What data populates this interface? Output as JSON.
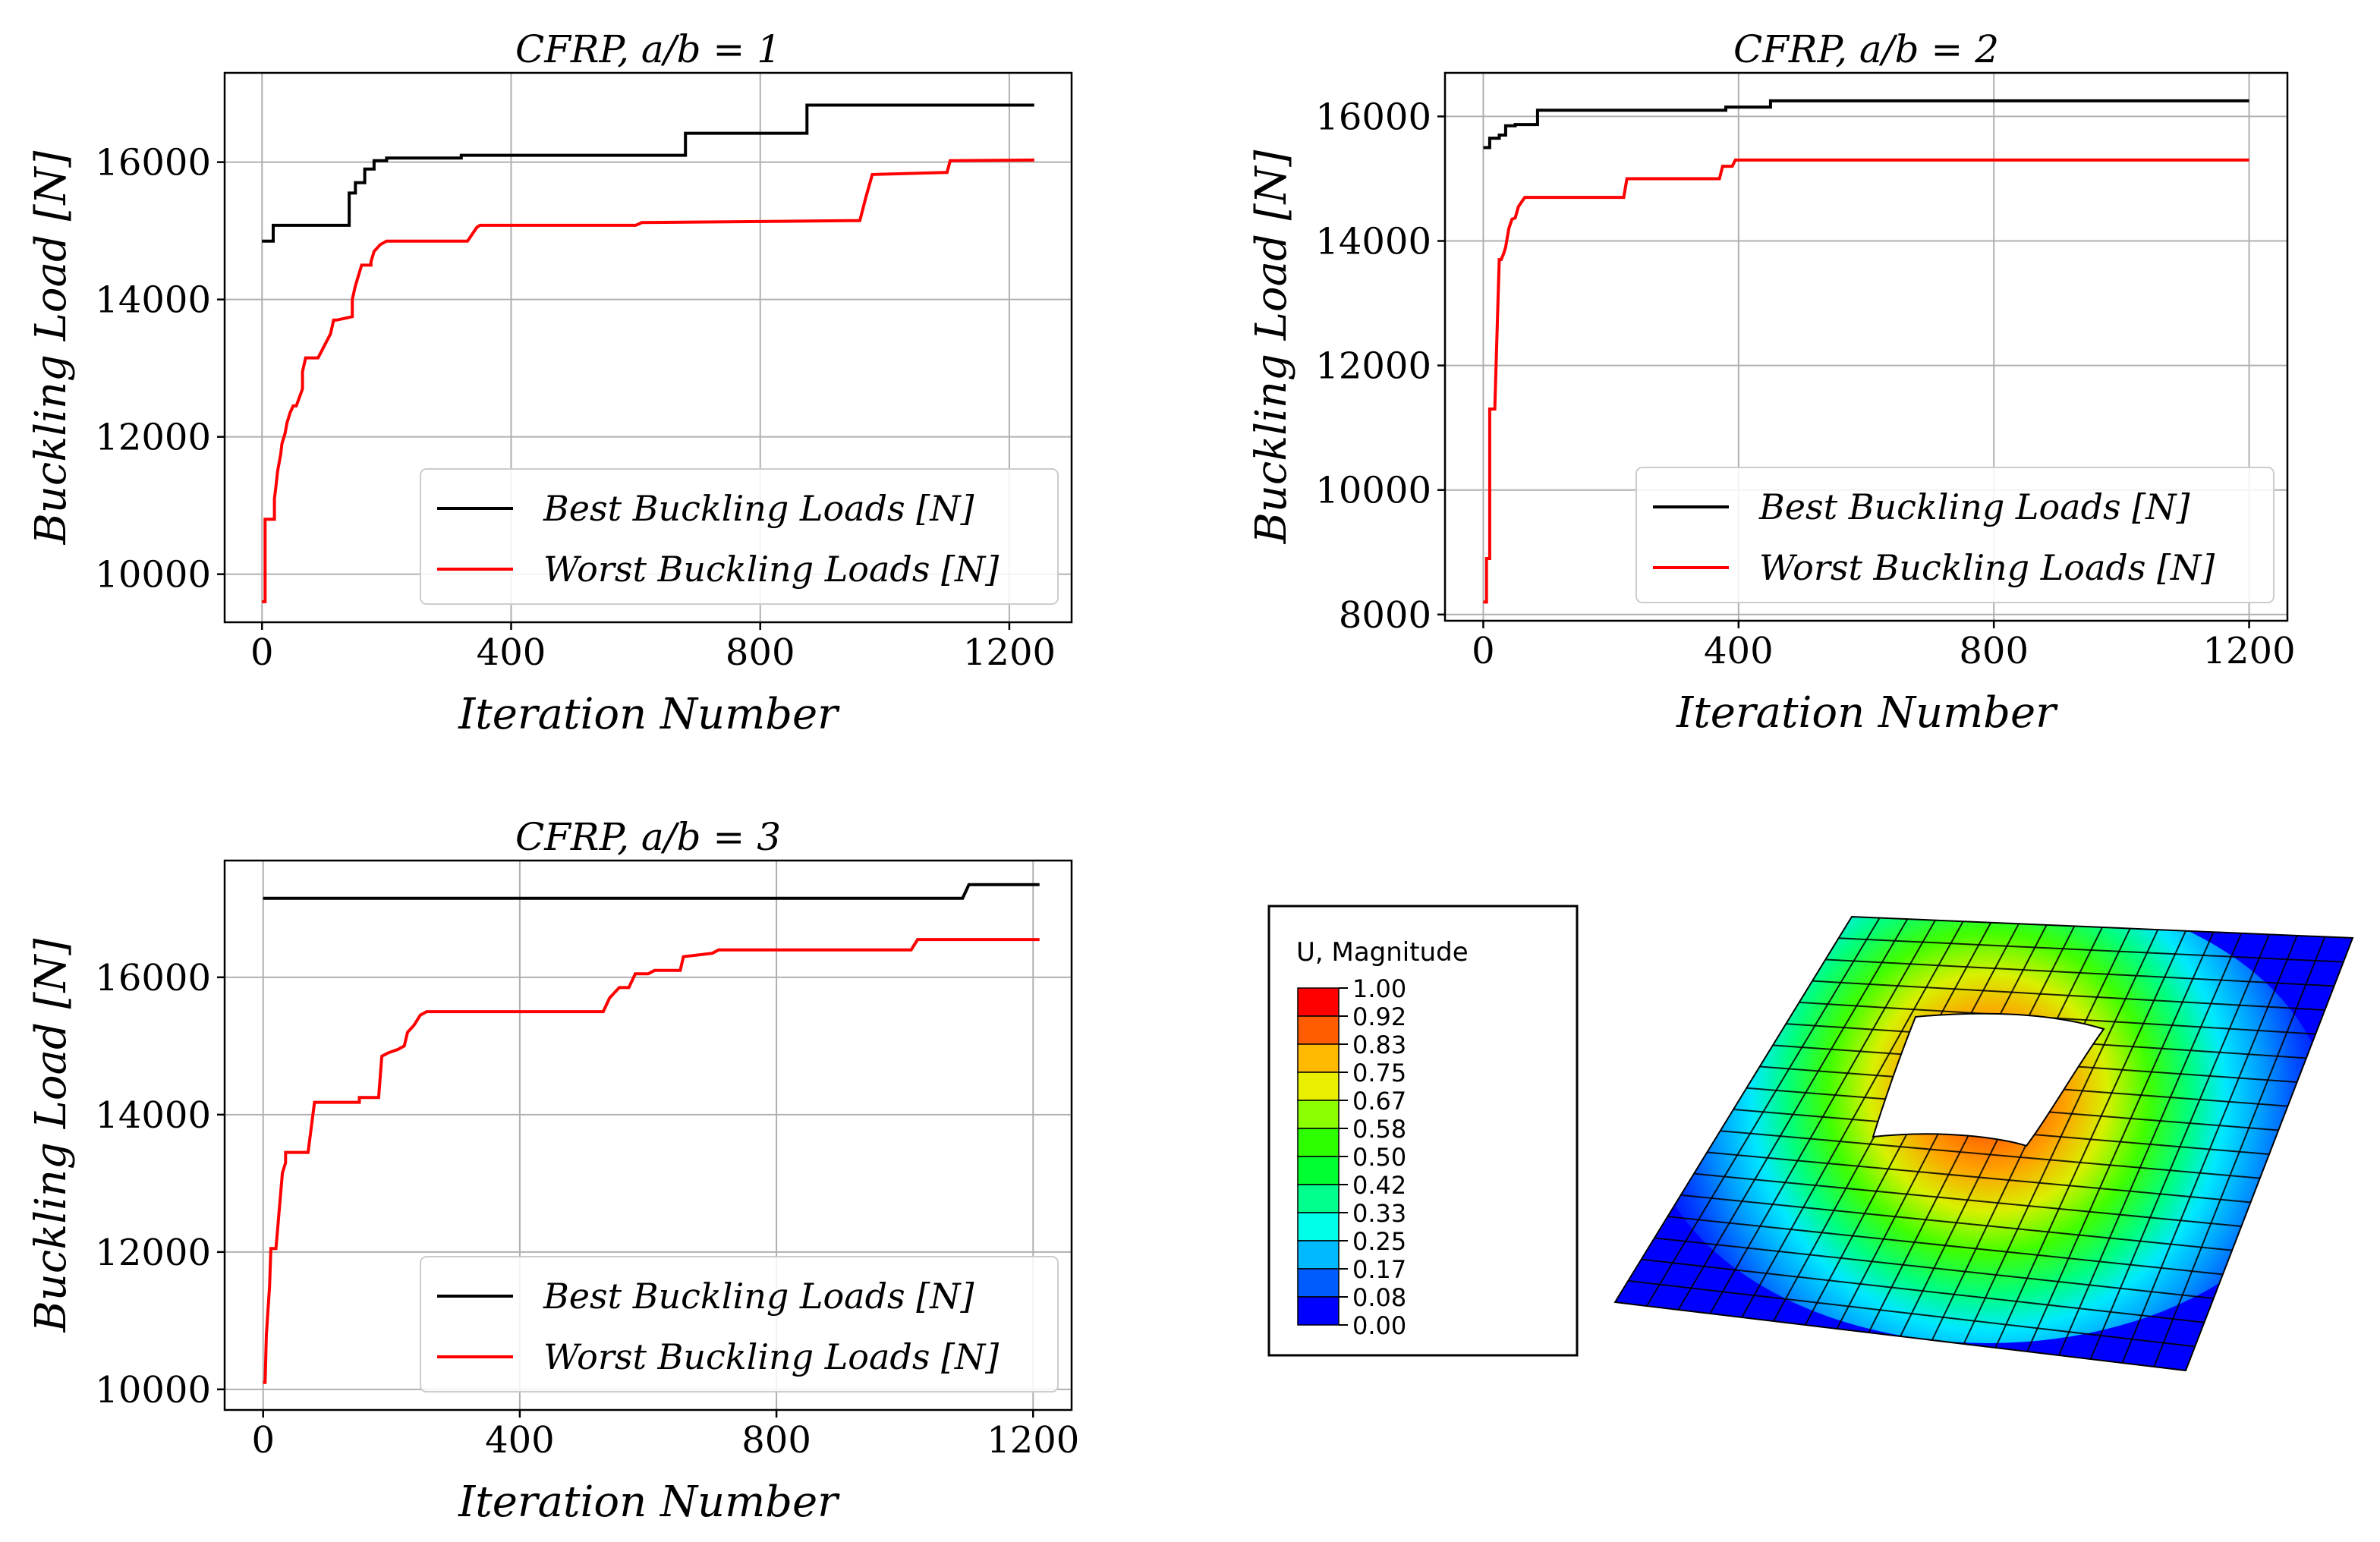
{
  "figure": {
    "background": "#ffffff"
  },
  "colors": {
    "best": "#000000",
    "worst": "#ff0000",
    "grid": "#b0b0b0",
    "axis": "#000000"
  },
  "chart_data": [
    {
      "type": "line",
      "title": "CFRP, a/b = 1",
      "xlabel": "Iteration Number",
      "ylabel": "Buckling Load [N]",
      "xlim": [
        -60,
        1300
      ],
      "ylim": [
        9300,
        17300
      ],
      "xticks": [
        0,
        400,
        800,
        1200
      ],
      "yticks": [
        10000,
        12000,
        14000,
        16000
      ],
      "legend": [
        "Best Buckling Loads [N]",
        "Worst Buckling Loads [N]"
      ],
      "legend_position": "lower-right",
      "grid": true,
      "series": [
        {
          "name": "Best Buckling Loads [N]",
          "color": "#000000",
          "x": [
            0,
            18,
            18,
            140,
            140,
            150,
            150,
            165,
            165,
            180,
            180,
            200,
            200,
            320,
            320,
            680,
            680,
            875,
            875,
            1240
          ],
          "y": [
            14850,
            14850,
            15080,
            15080,
            15550,
            15550,
            15700,
            15700,
            15900,
            15900,
            16020,
            16020,
            16060,
            16060,
            16100,
            16100,
            16420,
            16420,
            16830,
            16830
          ]
        },
        {
          "name": "Worst Buckling Loads [N]",
          "color": "#ff0000",
          "x": [
            0,
            5,
            5,
            20,
            20,
            22,
            25,
            30,
            32,
            37,
            40,
            45,
            50,
            55,
            65,
            65,
            70,
            90,
            110,
            115,
            120,
            145,
            145,
            150,
            160,
            175,
            175,
            180,
            190,
            200,
            210,
            330,
            345,
            350,
            600,
            610,
            960,
            970,
            980,
            1100,
            1105,
            1240
          ],
          "y": [
            9600,
            9600,
            10800,
            10800,
            11100,
            11250,
            11500,
            11750,
            11900,
            12050,
            12200,
            12350,
            12450,
            12450,
            12700,
            12950,
            13150,
            13150,
            13500,
            13700,
            13700,
            13750,
            14000,
            14200,
            14500,
            14500,
            14550,
            14700,
            14800,
            14850,
            14850,
            14850,
            15050,
            15080,
            15080,
            15120,
            15150,
            15500,
            15820,
            15850,
            16020,
            16030
          ]
        }
      ]
    },
    {
      "type": "line",
      "title": "CFRP, a/b = 2",
      "xlabel": "Iteration Number",
      "ylabel": "Buckling Load [N]",
      "xlim": [
        -60,
        1260
      ],
      "ylim": [
        7900,
        16700
      ],
      "xticks": [
        0,
        400,
        800,
        1200
      ],
      "yticks": [
        8000,
        10000,
        12000,
        14000,
        16000
      ],
      "legend": [
        "Best Buckling Loads [N]",
        "Worst Buckling Loads [N]"
      ],
      "legend_position": "lower-right",
      "grid": true,
      "series": [
        {
          "name": "Best Buckling Loads [N]",
          "color": "#000000",
          "x": [
            0,
            10,
            10,
            25,
            25,
            35,
            35,
            50,
            50,
            85,
            85,
            380,
            380,
            450,
            450,
            1200
          ],
          "y": [
            15500,
            15500,
            15650,
            15650,
            15700,
            15700,
            15850,
            15850,
            15870,
            15870,
            16100,
            16100,
            16150,
            16150,
            16250,
            16250
          ]
        },
        {
          "name": "Worst Buckling Loads [N]",
          "color": "#ff0000",
          "x": [
            0,
            5,
            5,
            10,
            10,
            18,
            20,
            22,
            25,
            28,
            32,
            35,
            40,
            45,
            45,
            50,
            55,
            65,
            70,
            220,
            225,
            370,
            375,
            390,
            395,
            1200
          ],
          "y": [
            8200,
            8200,
            8900,
            8900,
            11300,
            11300,
            12000,
            12700,
            13700,
            13700,
            13800,
            13900,
            14200,
            14350,
            14350,
            14370,
            14550,
            14700,
            14700,
            14700,
            15000,
            15000,
            15200,
            15200,
            15300,
            15300
          ]
        }
      ]
    },
    {
      "type": "line",
      "title": "CFRP, a/b = 3",
      "xlabel": "Iteration Number",
      "ylabel": "Buckling Load [N]",
      "xlim": [
        -60,
        1260
      ],
      "ylim": [
        9700,
        17700
      ],
      "xticks": [
        0,
        400,
        800,
        1200
      ],
      "yticks": [
        10000,
        12000,
        14000,
        16000
      ],
      "legend": [
        "Best Buckling Loads [N]",
        "Worst Buckling Loads [N]"
      ],
      "legend_position": "lower-right",
      "grid": true,
      "series": [
        {
          "name": "Best Buckling Loads [N]",
          "color": "#000000",
          "x": [
            0,
            1090,
            1100,
            1210
          ],
          "y": [
            17150,
            17150,
            17350,
            17350
          ]
        },
        {
          "name": "Worst Buckling Loads [N]",
          "color": "#ff0000",
          "x": [
            0,
            3,
            5,
            10,
            12,
            18,
            20,
            30,
            35,
            35,
            40,
            50,
            70,
            80,
            80,
            150,
            150,
            180,
            185,
            195,
            210,
            220,
            225,
            235,
            245,
            255,
            260,
            530,
            540,
            555,
            570,
            580,
            600,
            610,
            650,
            655,
            700,
            710,
            1010,
            1020,
            1210
          ],
          "y": [
            10100,
            10100,
            10800,
            11500,
            12050,
            12050,
            12050,
            13150,
            13300,
            13450,
            13450,
            13450,
            13450,
            14180,
            14180,
            14180,
            14250,
            14250,
            14850,
            14900,
            14950,
            15000,
            15200,
            15300,
            15450,
            15500,
            15500,
            15500,
            15700,
            15850,
            15850,
            16050,
            16050,
            16100,
            16100,
            16300,
            16350,
            16400,
            16400,
            16550,
            16550
          ]
        }
      ]
    }
  ],
  "contour": {
    "legend_title": "U, Magnitude",
    "levels": [
      "1.00",
      "0.92",
      "0.83",
      "0.75",
      "0.67",
      "0.58",
      "0.50",
      "0.42",
      "0.33",
      "0.25",
      "0.17",
      "0.08",
      "0.00"
    ],
    "band_colors": [
      "#ff0000",
      "#ff5c00",
      "#ffb900",
      "#e8f000",
      "#8cff00",
      "#2eff00",
      "#00ff2e",
      "#00ff8c",
      "#00ffe8",
      "#00b9ff",
      "#005cff",
      "#0000ff"
    ]
  }
}
